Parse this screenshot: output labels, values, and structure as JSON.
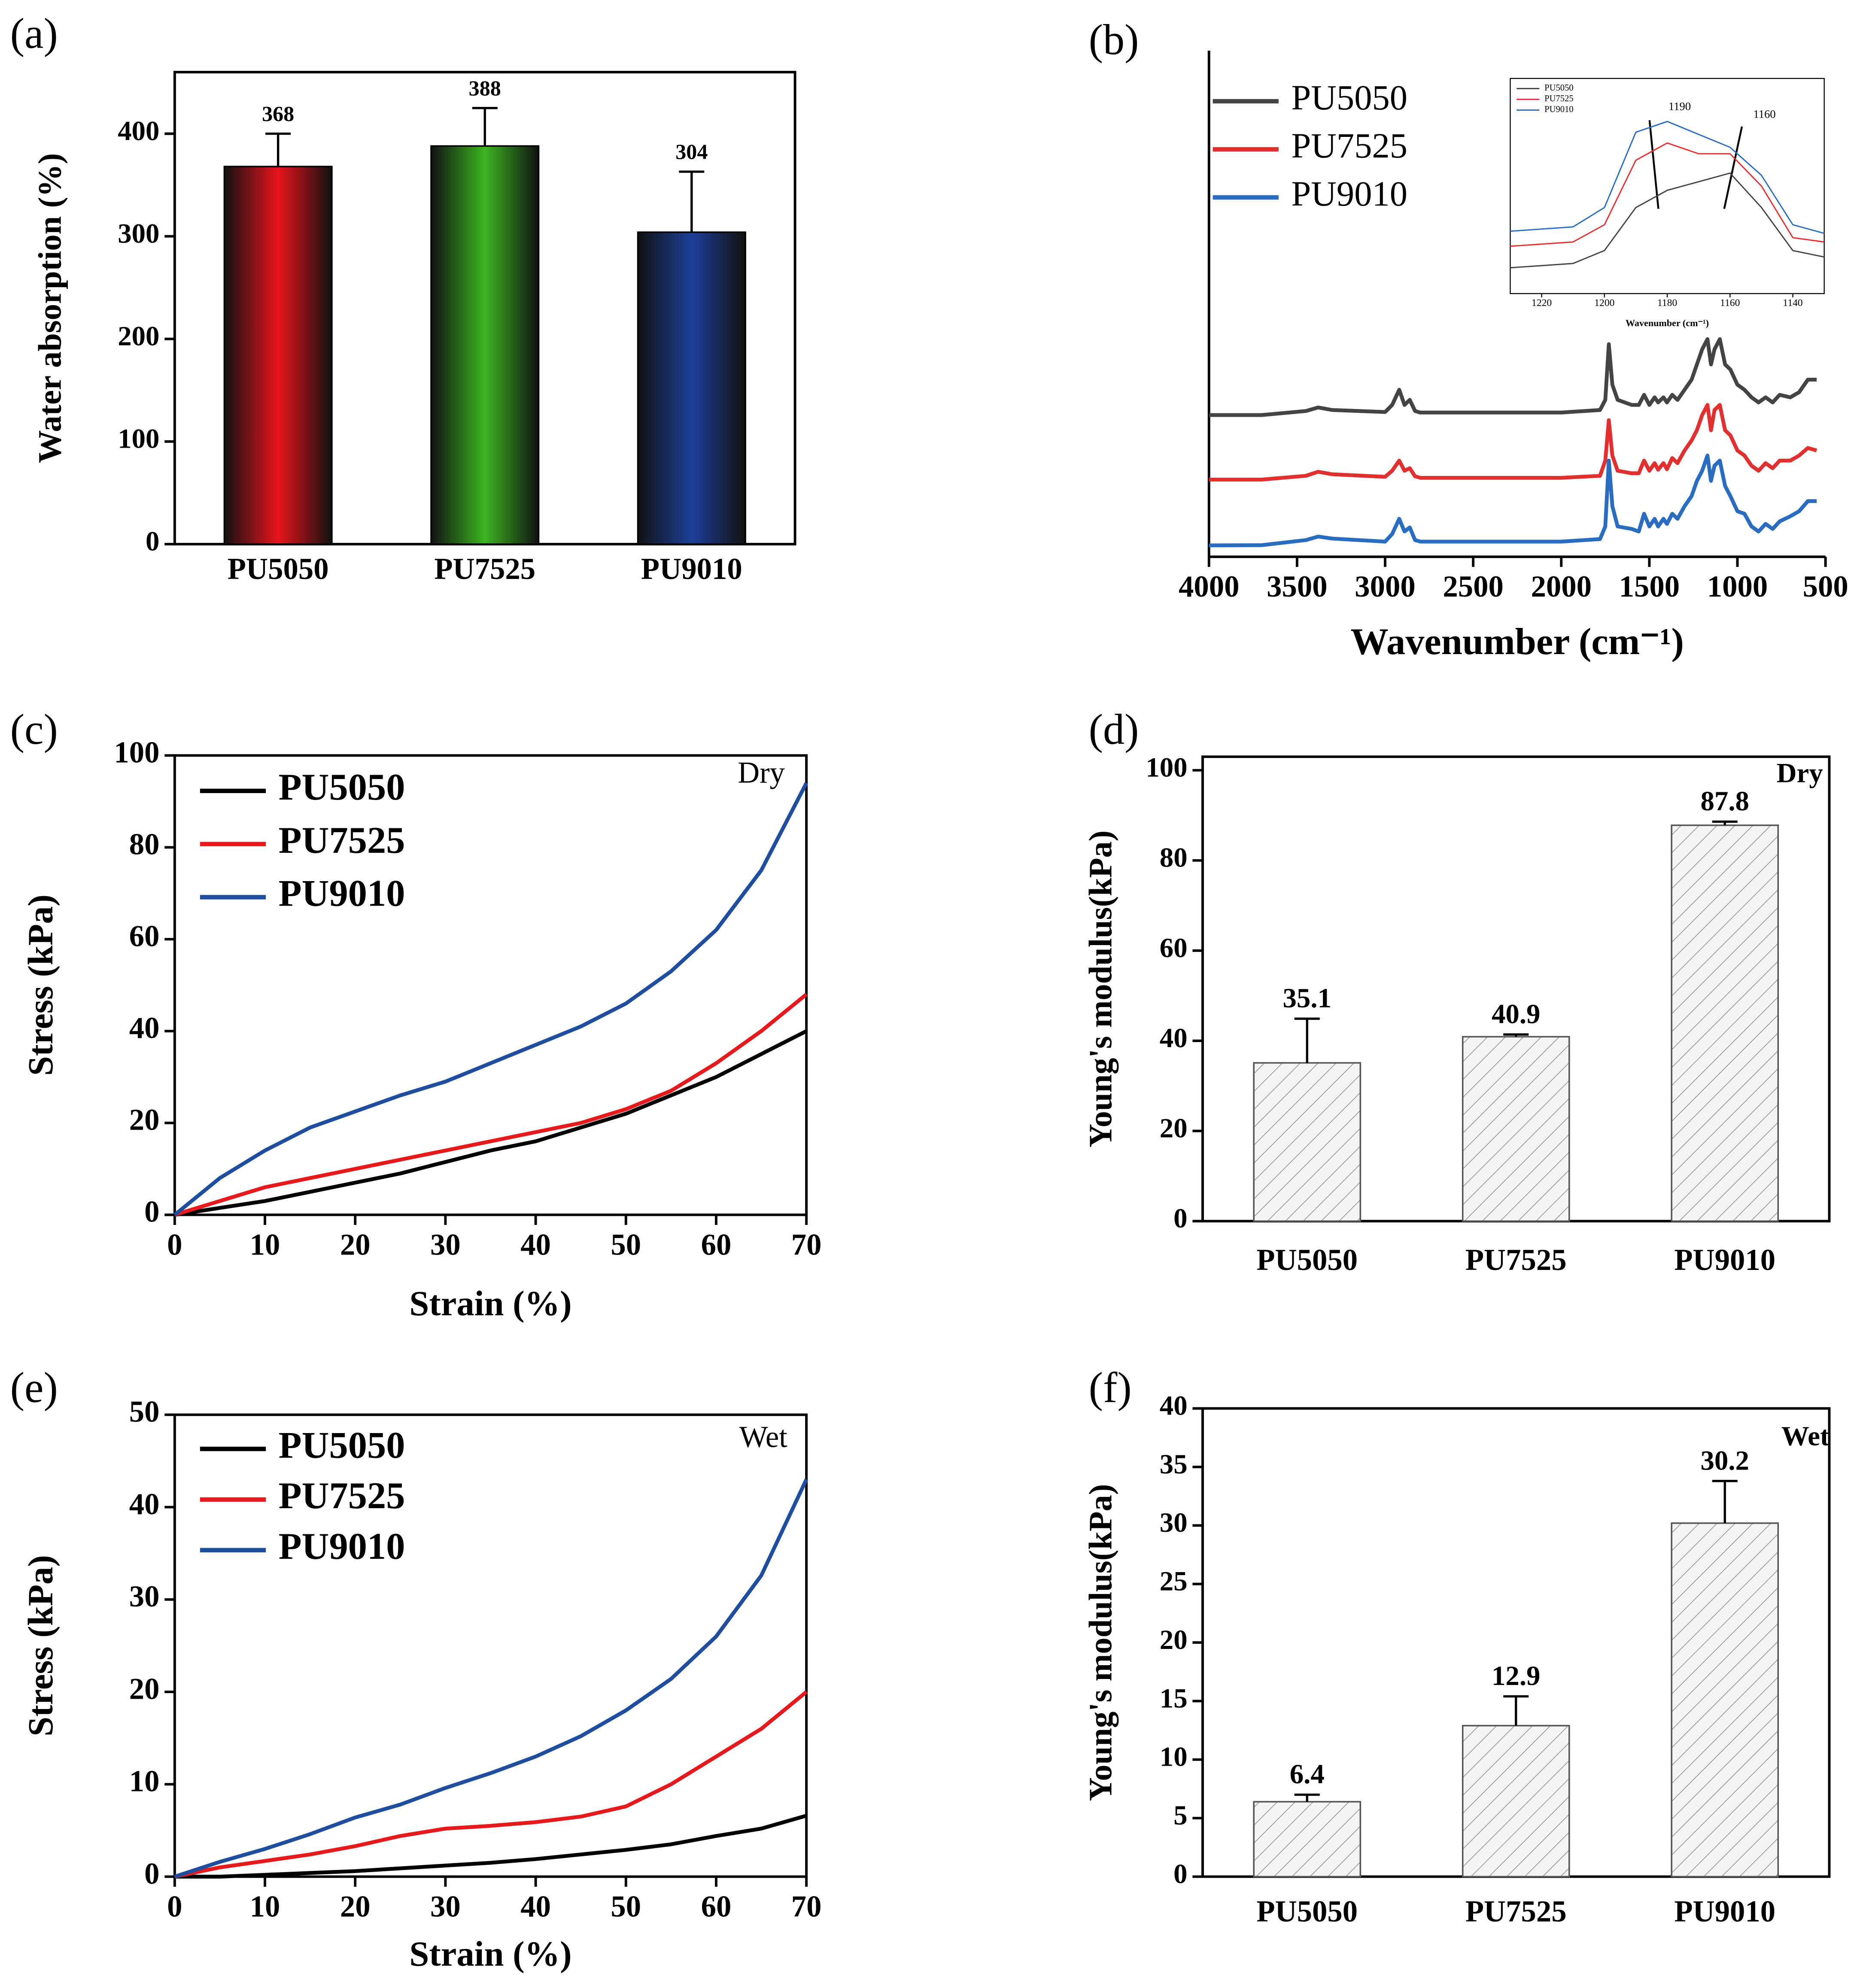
{
  "chart_data": [
    {
      "type": "bar",
      "panel_label": "(a)",
      "ylabel": "Water absorption (%)",
      "categories": [
        "PU5050",
        "PU7525",
        "PU9010"
      ],
      "values": [
        368,
        388,
        304
      ],
      "errors": [
        32,
        37,
        59
      ],
      "colors": [
        "#e8141c",
        "#3cb521",
        "#1c3f9a"
      ],
      "ylim": [
        0,
        460
      ],
      "yticks": [
        0,
        100,
        200,
        300,
        400
      ]
    },
    {
      "type": "line",
      "panel_label": "(b)",
      "xlabel": "Wavenumber (cm⁻¹)",
      "legend": "upper left",
      "x": [
        4000,
        3700,
        3450,
        3380,
        3300,
        3000,
        2960,
        2920,
        2890,
        2860,
        2830,
        2800,
        2000,
        1780,
        1750,
        1730,
        1710,
        1680,
        1600,
        1560,
        1530,
        1500,
        1470,
        1450,
        1420,
        1400,
        1370,
        1340,
        1300,
        1260,
        1230,
        1200,
        1170,
        1150,
        1130,
        1100,
        1070,
        1040,
        1000,
        960,
        920,
        880,
        840,
        800,
        760,
        700,
        650,
        600,
        550
      ],
      "series": [
        {
          "name": "PU5050",
          "color": "#444444",
          "values": [
            28,
            28,
            28.8,
            29.5,
            29,
            28.6,
            30,
            33,
            30,
            31,
            28.8,
            28.5,
            28.5,
            29,
            31,
            42,
            34,
            31,
            30,
            30,
            32,
            30,
            31.5,
            30.5,
            31.5,
            30.5,
            32,
            31,
            33,
            35,
            38,
            41,
            43,
            38,
            41,
            43,
            38,
            37,
            34,
            33,
            31.5,
            30.5,
            31.5,
            30.5,
            32,
            31.5,
            32.5,
            35,
            35
          ]
        },
        {
          "name": "PU7525",
          "color": "#e03030",
          "values": [
            15.25,
            15.25,
            16,
            16.8,
            16.3,
            15.8,
            17,
            19,
            17,
            17.5,
            15.9,
            15.6,
            15.6,
            16,
            19,
            27,
            20,
            17,
            16.5,
            16.5,
            19,
            17,
            18.5,
            17.2,
            18.5,
            17.3,
            19.5,
            18.5,
            21,
            23,
            25,
            28,
            30,
            25,
            29,
            30,
            25,
            24,
            21,
            20,
            18,
            17,
            18.5,
            17.5,
            19,
            19,
            20,
            21.5,
            21
          ]
        },
        {
          "name": "PU9010",
          "color": "#2a6cc0",
          "values": [
            2.25,
            2.3,
            3.3,
            4,
            3.6,
            3,
            4.5,
            7.5,
            5,
            5.8,
            3.3,
            3,
            3,
            3.5,
            6,
            19,
            10,
            6,
            5.5,
            5,
            8.5,
            6,
            7.5,
            6,
            7.5,
            6.5,
            8.5,
            7.5,
            10,
            12,
            15,
            17,
            20,
            15,
            18,
            19,
            14,
            12,
            9,
            8.5,
            6,
            5,
            6.5,
            5.5,
            7,
            8,
            9,
            11,
            11
          ]
        }
      ],
      "xlim": [
        4000,
        500
      ],
      "ylim": [
        0,
        100
      ],
      "xticks": [
        4000,
        3500,
        3000,
        2500,
        2000,
        1500,
        1000,
        500
      ]
    },
    {
      "type": "line",
      "xlabel": "Wavenumber (cm⁻¹)",
      "legend": "upper left",
      "annotations": [
        "1190",
        "1160"
      ],
      "x": [
        1230,
        1210,
        1200,
        1190,
        1180,
        1170,
        1160,
        1150,
        1140,
        1130
      ],
      "series": [
        {
          "name": "PU5050",
          "color": "#444444",
          "values": [
            12,
            14,
            20,
            40,
            48,
            52,
            56,
            40,
            20,
            17
          ]
        },
        {
          "name": "PU7525",
          "color": "#e03030",
          "values": [
            22,
            24,
            32,
            62,
            70,
            65,
            65,
            50,
            26,
            24
          ]
        },
        {
          "name": "PU9010",
          "color": "#2a6cc0",
          "values": [
            29,
            31,
            40,
            75,
            80,
            74,
            68,
            55,
            32,
            28
          ]
        }
      ],
      "xlim": [
        1230,
        1130
      ],
      "ylim": [
        0,
        100
      ],
      "xticks": [
        1220,
        1200,
        1180,
        1160,
        1140
      ]
    },
    {
      "type": "line",
      "panel_label": "(c)",
      "xlabel": "Strain (%)",
      "ylabel": "Stress (kPa)",
      "annotations": [
        "Dry"
      ],
      "legend": "upper left",
      "x": [
        0,
        5,
        10,
        15,
        20,
        25,
        30,
        35,
        40,
        45,
        50,
        55,
        60,
        65,
        70
      ],
      "series": [
        {
          "name": "PU5050",
          "color": "#000000",
          "values": [
            0,
            1.5,
            3,
            5,
            7,
            9,
            11.5,
            14,
            16,
            19,
            22,
            26,
            30,
            35,
            40
          ]
        },
        {
          "name": "PU7525",
          "color": "#e41a1c",
          "values": [
            0,
            3,
            6,
            8,
            10,
            12,
            14,
            16,
            18,
            20,
            23,
            27,
            33,
            40,
            48
          ]
        },
        {
          "name": "PU9010",
          "color": "#1f4e9e",
          "values": [
            0,
            8,
            14,
            19,
            22.5,
            26,
            29,
            33,
            37,
            41,
            46,
            53,
            62,
            75,
            94
          ]
        }
      ],
      "xlim": [
        0,
        70
      ],
      "ylim": [
        0,
        100
      ],
      "xticks": [
        0,
        10,
        20,
        30,
        40,
        50,
        60,
        70
      ],
      "yticks": [
        0,
        20,
        40,
        60,
        80,
        100
      ]
    },
    {
      "type": "bar",
      "panel_label": "(d)",
      "ylabel": "Young's modulus(kPa)",
      "annotations": [
        "Dry"
      ],
      "hatch": true,
      "categories": [
        "PU5050",
        "PU7525",
        "PU9010"
      ],
      "values": [
        35.1,
        40.9,
        87.8
      ],
      "errors": [
        9.8,
        0.5,
        0.8
      ],
      "colors": [
        "#f2f2f2",
        "#f2f2f2",
        "#f2f2f2"
      ],
      "ylim": [
        0,
        103
      ],
      "yticks": [
        0,
        20,
        40,
        60,
        80,
        100
      ]
    },
    {
      "type": "line",
      "panel_label": "(e)",
      "xlabel": "Strain (%)",
      "ylabel": "Stress (kPa)",
      "annotations": [
        "Wet"
      ],
      "legend": "upper left",
      "x": [
        0,
        5,
        10,
        15,
        20,
        25,
        30,
        35,
        40,
        45,
        50,
        55,
        60,
        65,
        70
      ],
      "series": [
        {
          "name": "PU5050",
          "color": "#000000",
          "values": [
            0,
            0,
            0.2,
            0.4,
            0.6,
            0.9,
            1.2,
            1.5,
            1.9,
            2.4,
            2.9,
            3.5,
            4.4,
            5.2,
            6.6
          ]
        },
        {
          "name": "PU7525",
          "color": "#e41a1c",
          "values": [
            0,
            1,
            1.7,
            2.4,
            3.3,
            4.4,
            5.2,
            5.5,
            5.9,
            6.5,
            7.6,
            10,
            13,
            16,
            20
          ]
        },
        {
          "name": "PU9010",
          "color": "#1f4e9e",
          "values": [
            0,
            1.6,
            3,
            4.6,
            6.4,
            7.8,
            9.6,
            11.2,
            13,
            15.2,
            18,
            21.4,
            26,
            32.6,
            43
          ]
        }
      ],
      "xlim": [
        0,
        70
      ],
      "ylim": [
        0,
        50
      ],
      "xticks": [
        0,
        10,
        20,
        30,
        40,
        50,
        60,
        70
      ],
      "yticks": [
        0,
        10,
        20,
        30,
        40,
        50
      ]
    },
    {
      "type": "bar",
      "panel_label": "(f)",
      "ylabel": "Young's modulus(kPa)",
      "annotations": [
        "Wet"
      ],
      "hatch": true,
      "categories": [
        "PU5050",
        "PU7525",
        "PU9010"
      ],
      "values": [
        6.4,
        12.9,
        30.2
      ],
      "errors": [
        0.6,
        2.5,
        3.6
      ],
      "colors": [
        "#f2f2f2",
        "#f2f2f2",
        "#f2f2f2"
      ],
      "ylim": [
        0,
        40
      ],
      "yticks": [
        0,
        5,
        10,
        15,
        20,
        25,
        30,
        35,
        40
      ]
    }
  ]
}
